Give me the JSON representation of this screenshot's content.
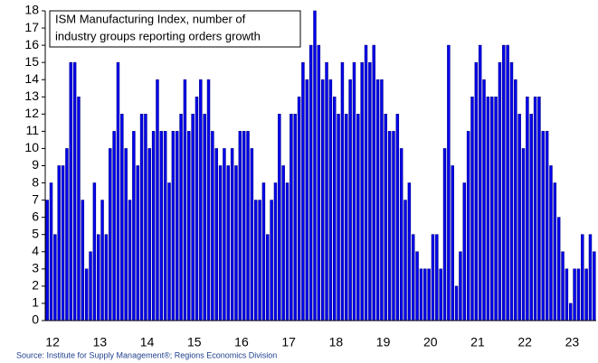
{
  "chart_data": {
    "type": "bar",
    "annotation": [
      "ISM Manufacturing Index, number of",
      "industry groups reporting orders growth"
    ],
    "source": "Source: Institute for Supply Management®; Regions Economics Division",
    "color": "#0000ee",
    "categories": [
      "12",
      null,
      null,
      null,
      null,
      null,
      null,
      null,
      null,
      null,
      null,
      null,
      "13",
      null,
      null,
      null,
      null,
      null,
      null,
      null,
      null,
      null,
      null,
      null,
      "14",
      null,
      null,
      null,
      null,
      null,
      null,
      null,
      null,
      null,
      null,
      null,
      "15",
      null,
      null,
      null,
      null,
      null,
      null,
      null,
      null,
      null,
      null,
      null,
      "16",
      null,
      null,
      null,
      null,
      null,
      null,
      null,
      null,
      null,
      null,
      null,
      "17",
      null,
      null,
      null,
      null,
      null,
      null,
      null,
      null,
      null,
      null,
      null,
      "18",
      null,
      null,
      null,
      null,
      null,
      null,
      null,
      null,
      null,
      null,
      null,
      "19",
      null,
      null,
      null,
      null,
      null,
      null,
      null,
      null,
      null,
      null,
      null,
      "20",
      null,
      null,
      null,
      null,
      null,
      null,
      null,
      null,
      null,
      null,
      null,
      "21",
      null,
      null,
      null,
      null,
      null,
      null,
      null,
      null,
      null,
      null,
      null,
      "22",
      null,
      null,
      null,
      null,
      null,
      null,
      null,
      null,
      null,
      null,
      null,
      "23",
      null,
      null,
      null,
      null,
      null,
      null,
      null
    ],
    "values": [
      7,
      8,
      5,
      9,
      9,
      10,
      15,
      15,
      13,
      7,
      3,
      4,
      8,
      5,
      7,
      5,
      10,
      11,
      15,
      12,
      10,
      7,
      11,
      9,
      12,
      12,
      10,
      11,
      14,
      11,
      11,
      8,
      11,
      11,
      12,
      14,
      11,
      12,
      13,
      14,
      12,
      14,
      11,
      10,
      9,
      10,
      9,
      10,
      9,
      11,
      11,
      11,
      10,
      7,
      7,
      8,
      5,
      7,
      8,
      12,
      9,
      8,
      12,
      12,
      13,
      15,
      14,
      16,
      18,
      16,
      14,
      15,
      14,
      13,
      12,
      15,
      12,
      14,
      15,
      12,
      15,
      16,
      15,
      16,
      14,
      14,
      12,
      11,
      11,
      12,
      10,
      7,
      8,
      5,
      4,
      3,
      3,
      3,
      5,
      5,
      3,
      10,
      16,
      9,
      2,
      4,
      8,
      11,
      13,
      15,
      16,
      14,
      13,
      13,
      13,
      15,
      16,
      16,
      15,
      14,
      12,
      10,
      13,
      12,
      13,
      13,
      11,
      11,
      9,
      8,
      6,
      4,
      3,
      1,
      3,
      3,
      5,
      3,
      5,
      4
    ],
    "ylim": [
      0,
      18
    ],
    "yticks": [
      0,
      1,
      2,
      3,
      4,
      5,
      6,
      7,
      8,
      9,
      10,
      11,
      12,
      13,
      14,
      15,
      16,
      17,
      18
    ]
  }
}
